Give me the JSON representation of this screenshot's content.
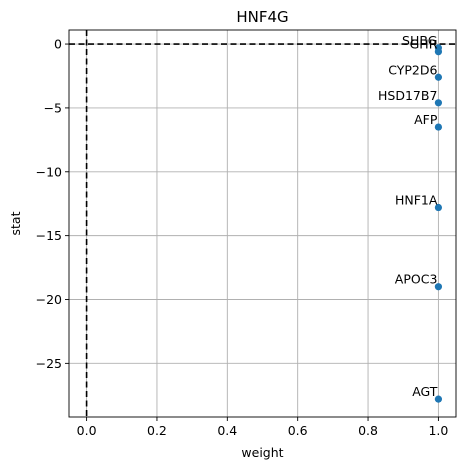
{
  "chart_data": {
    "type": "scatter",
    "title": "HNF4G",
    "xlabel": "weight",
    "ylabel": "stat",
    "xlim": [
      -0.05,
      1.05
    ],
    "ylim": [
      -29.2,
      1.1
    ],
    "x_ticks": [
      0.0,
      0.2,
      0.4,
      0.6,
      0.8,
      1.0
    ],
    "x_tick_labels": [
      "0.0",
      "0.2",
      "0.4",
      "0.6",
      "0.8",
      "1.0"
    ],
    "y_ticks": [
      0,
      -5,
      -10,
      -15,
      -20,
      -25
    ],
    "y_tick_labels": [
      "0",
      "−5",
      "−10",
      "−15",
      "−20",
      "−25"
    ],
    "grid": true,
    "reference_lines": {
      "x": 0,
      "y": 0
    },
    "point_color": "#1f77b4",
    "points": [
      {
        "label": "SHBG",
        "x": 1.0,
        "y": -0.3
      },
      {
        "label": "GHR",
        "x": 1.0,
        "y": -0.6
      },
      {
        "label": "CYP2D6",
        "x": 1.0,
        "y": -2.6
      },
      {
        "label": "HSD17B7",
        "x": 1.0,
        "y": -4.6
      },
      {
        "label": "AFP",
        "x": 1.0,
        "y": -6.5
      },
      {
        "label": "HNF1A",
        "x": 1.0,
        "y": -12.8
      },
      {
        "label": "APOC3",
        "x": 1.0,
        "y": -19.0
      },
      {
        "label": "AGT",
        "x": 1.0,
        "y": -27.8
      }
    ]
  }
}
